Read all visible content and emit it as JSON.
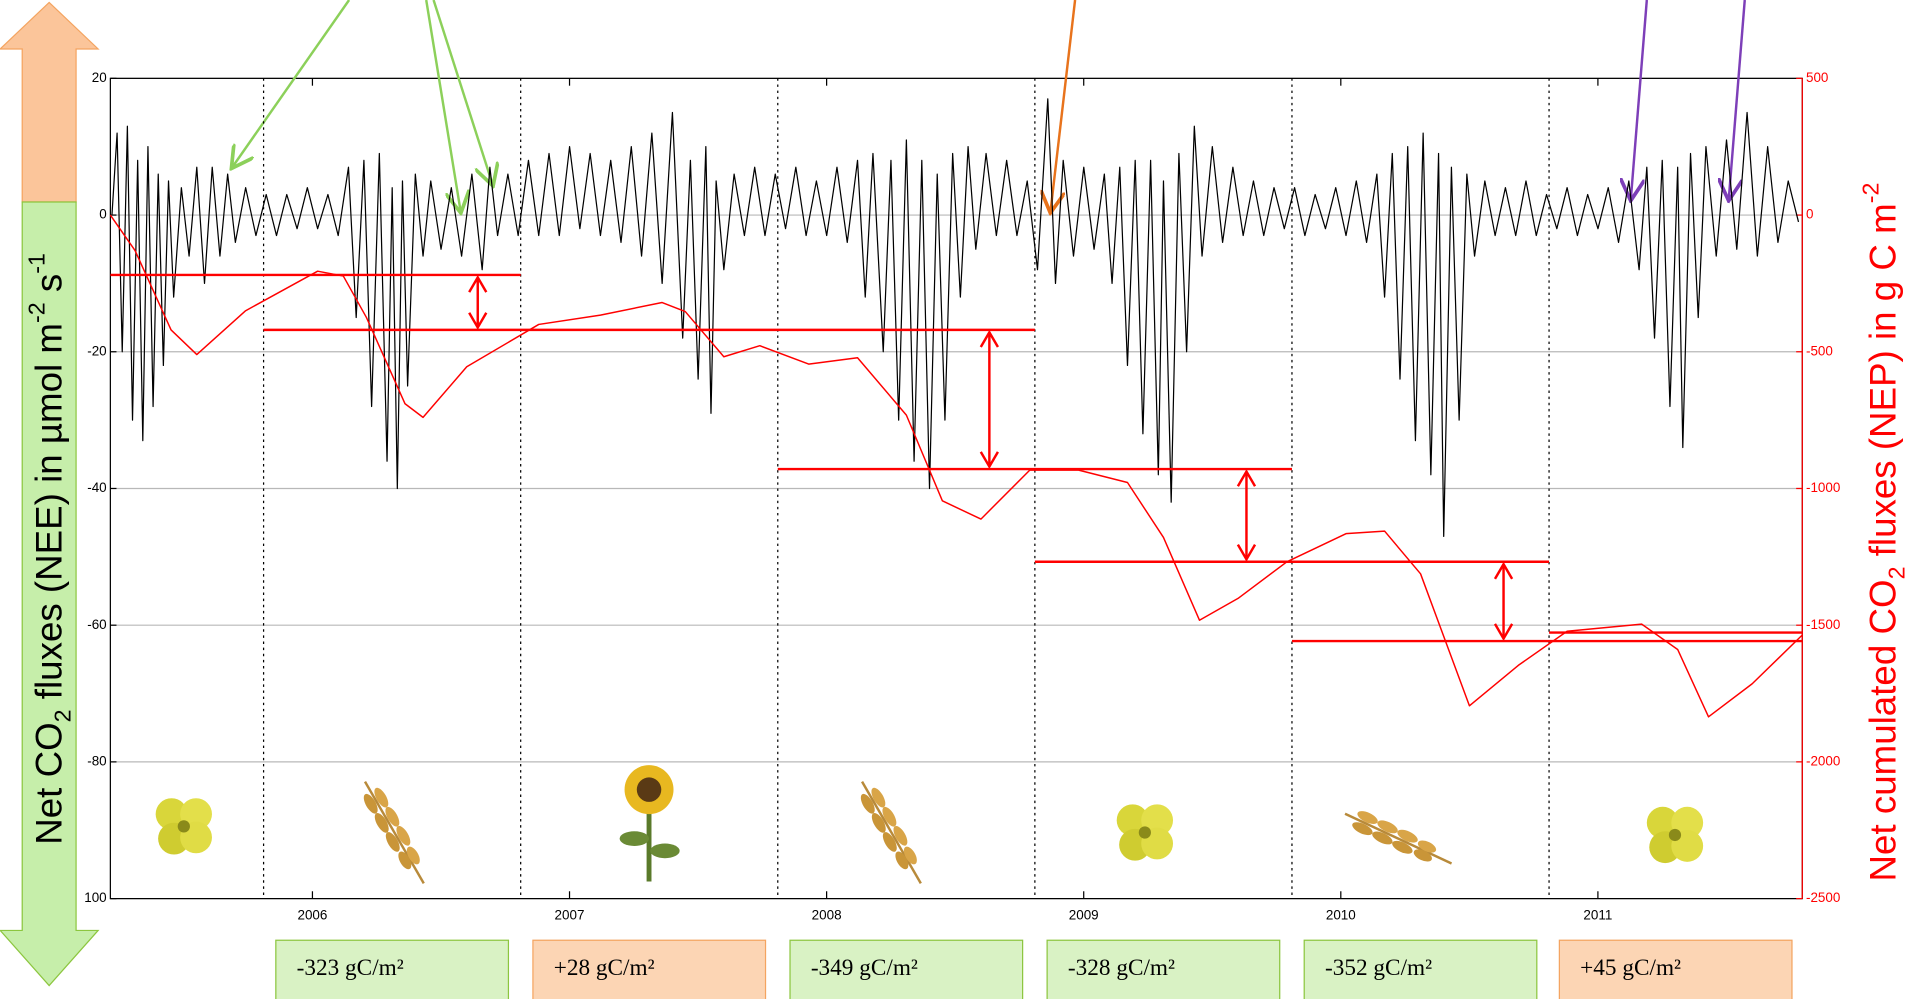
{
  "chart_data": {
    "type": "line",
    "ylabel": [
      "Net CO",
      "2",
      " fluxes (NEE) in µmol m",
      "-2",
      " s",
      "-1"
    ],
    "y2label": [
      "Net cumulated CO",
      "2",
      " fluxes (NEP) in g C m",
      "-2"
    ],
    "xlim": [
      2005.214,
      2011.795
    ],
    "xticks": [
      2006,
      2007,
      2008,
      2009,
      2010,
      2011
    ],
    "ylim": [
      -100,
      20
    ],
    "yticks": [
      20,
      0,
      -20,
      -40,
      -60,
      -80,
      {
        "value": -100,
        "label": "100"
      }
    ],
    "y2lim": [
      -2500,
      500
    ],
    "y2ticks": [
      500,
      0,
      -500,
      -1000,
      -1500,
      -2000,
      -2500
    ],
    "grid": true,
    "series": [
      {
        "color": "#000000",
        "x": [
          2005.22,
          2005.24,
          2005.26,
          2005.28,
          2005.3,
          2005.32,
          2005.34,
          2005.36,
          2005.38,
          2005.4,
          2005.42,
          2005.44,
          2005.46,
          2005.49,
          2005.52,
          2005.55,
          2005.58,
          2005.61,
          2005.64,
          2005.67,
          2005.7,
          2005.74,
          2005.78,
          2005.82,
          2005.86,
          2005.9,
          2005.94,
          2005.98,
          2006.02,
          2006.06,
          2006.1,
          2006.14,
          2006.17,
          2006.2,
          2006.23,
          2006.26,
          2006.29,
          2006.31,
          2006.33,
          2006.35,
          2006.37,
          2006.4,
          2006.43,
          2006.46,
          2006.5,
          2006.54,
          2006.58,
          2006.62,
          2006.66,
          2006.69,
          2006.72,
          2006.76,
          2006.8,
          2006.84,
          2006.88,
          2006.92,
          2006.96,
          2007.0,
          2007.04,
          2007.08,
          2007.12,
          2007.16,
          2007.2,
          2007.24,
          2007.28,
          2007.32,
          2007.36,
          2007.4,
          2007.44,
          2007.47,
          2007.5,
          2007.53,
          2007.55,
          2007.57,
          2007.6,
          2007.64,
          2007.68,
          2007.72,
          2007.76,
          2007.8,
          2007.84,
          2007.88,
          2007.92,
          2007.96,
          2008.0,
          2008.04,
          2008.08,
          2008.12,
          2008.15,
          2008.18,
          2008.22,
          2008.25,
          2008.28,
          2008.31,
          2008.34,
          2008.37,
          2008.4,
          2008.43,
          2008.46,
          2008.49,
          2008.52,
          2008.55,
          2008.58,
          2008.62,
          2008.66,
          2008.7,
          2008.74,
          2008.78,
          2008.82,
          2008.86,
          2008.89,
          2008.92,
          2008.96,
          2009.0,
          2009.04,
          2009.08,
          2009.11,
          2009.14,
          2009.17,
          2009.2,
          2009.23,
          2009.26,
          2009.29,
          2009.31,
          2009.34,
          2009.37,
          2009.4,
          2009.43,
          2009.46,
          2009.5,
          2009.54,
          2009.58,
          2009.62,
          2009.66,
          2009.7,
          2009.74,
          2009.78,
          2009.82,
          2009.86,
          2009.9,
          2009.94,
          2009.98,
          2010.02,
          2010.06,
          2010.1,
          2010.14,
          2010.17,
          2010.2,
          2010.23,
          2010.26,
          2010.29,
          2010.32,
          2010.35,
          2010.38,
          2010.4,
          2010.43,
          2010.46,
          2010.49,
          2010.52,
          2010.56,
          2010.6,
          2010.64,
          2010.68,
          2010.72,
          2010.76,
          2010.8,
          2010.84,
          2010.88,
          2010.92,
          2010.96,
          2011.0,
          2011.04,
          2011.08,
          2011.12,
          2011.16,
          2011.19,
          2011.22,
          2011.25,
          2011.28,
          2011.31,
          2011.33,
          2011.36,
          2011.39,
          2011.42,
          2011.46,
          2011.5,
          2011.54,
          2011.58,
          2011.62,
          2011.66,
          2011.7,
          2011.74,
          2011.78
        ],
        "values": [
          0,
          12,
          -20,
          13,
          -30,
          8,
          -33,
          10,
          -28,
          6,
          -22,
          5,
          -12,
          4,
          -6,
          7,
          -10,
          7,
          -6,
          6,
          -4,
          4,
          -3,
          3,
          -3,
          3,
          -2,
          4,
          -2,
          3,
          -3,
          7,
          -15,
          8,
          -28,
          9,
          -36,
          4,
          -40,
          5,
          -25,
          6,
          -6,
          5,
          -5,
          4,
          -6,
          6,
          -8,
          7,
          -3,
          6,
          -3,
          8,
          -3,
          9,
          -3,
          10,
          -2,
          9,
          -3,
          8,
          -4,
          10,
          -6,
          12,
          -10,
          15,
          -18,
          8,
          -24,
          10,
          -29,
          5,
          -8,
          6,
          -3,
          7,
          -3,
          6,
          -2,
          7,
          -3,
          5,
          -3,
          7,
          -4,
          8,
          -12,
          9,
          -20,
          8,
          -30,
          11,
          -36,
          8,
          -40,
          6,
          -30,
          9,
          -12,
          10,
          -5,
          9,
          -3,
          8,
          -3,
          5,
          -8,
          17,
          -10,
          8,
          -6,
          7,
          -5,
          6,
          -10,
          7,
          -22,
          8,
          -32,
          8,
          -38,
          5,
          -42,
          9,
          -20,
          13,
          -6,
          10,
          -4,
          7,
          -3,
          5,
          -3,
          4,
          -2,
          4,
          -3,
          3,
          -2,
          4,
          -3,
          5,
          -4,
          6,
          -12,
          9,
          -24,
          10,
          -33,
          12,
          -38,
          9,
          -47,
          7,
          -30,
          6,
          -6,
          5,
          -3,
          4,
          -3,
          5,
          -3,
          3,
          -2,
          4,
          -3,
          3,
          -2,
          4,
          -4,
          5,
          -8,
          7,
          -18,
          8,
          -28,
          7,
          -34,
          9,
          -15,
          10,
          -6,
          11,
          -5,
          15,
          -6,
          10,
          -4,
          5,
          -1
        ]
      },
      {
        "color": "#ff0000",
        "axis": "y2",
        "x": [
          2005.214,
          2005.31,
          2005.45,
          2005.55,
          2005.74,
          2006.02,
          2006.12,
          2006.21,
          2006.36,
          2006.43,
          2006.6,
          2006.88,
          2007.12,
          2007.36,
          2007.45,
          2007.6,
          2007.74,
          2007.93,
          2008.12,
          2008.31,
          2008.45,
          2008.6,
          2008.79,
          2008.98,
          2009.17,
          2009.31,
          2009.45,
          2009.6,
          2009.79,
          2010.02,
          2010.17,
          2010.31,
          2010.5,
          2010.69,
          2010.88,
          2011.17,
          2011.31,
          2011.43,
          2011.6,
          2011.795
        ],
        "values": [
          0,
          -130,
          -420,
          -510,
          -350,
          -205,
          -223,
          -375,
          -690,
          -740,
          -555,
          -400,
          -366,
          -320,
          -353,
          -518,
          -478,
          -545,
          -522,
          -732,
          -1045,
          -1112,
          -933,
          -933,
          -978,
          -1179,
          -1482,
          -1402,
          -1268,
          -1165,
          -1156,
          -1312,
          -1795,
          -1647,
          -1522,
          -1496,
          -1589,
          -1835,
          -1714,
          -1536
        ]
      }
    ],
    "season_lines": [
      2005.81,
      2006.81,
      2007.81,
      2008.81,
      2009.81,
      2010.81
    ],
    "reference_lines": [
      {
        "value": -219,
        "x": [
          2005.214,
          2006.81
        ]
      },
      {
        "value": -420,
        "x": [
          2005.81,
          2008.81
        ]
      },
      {
        "value": -929,
        "x": [
          2007.81,
          2009.81
        ]
      },
      {
        "value": -1268,
        "x": [
          2008.81,
          2010.81
        ]
      },
      {
        "value": -1558,
        "x": [
          2009.81,
          2011.795
        ]
      },
      {
        "value": -1527,
        "x": [
          2010.81,
          2011.795
        ]
      }
    ],
    "difference_arrows": [
      {
        "x": 2006.643,
        "from": -219,
        "to": -420
      },
      {
        "x": 2008.633,
        "from": -420,
        "to": -929
      },
      {
        "x": 2009.633,
        "from": -929,
        "to": -1268
      },
      {
        "x": 2010.633,
        "from": -1268,
        "to": -1558
      }
    ],
    "annotations": [
      {
        "text": "-323 gC/m²",
        "fill": "#d9f2c4",
        "stroke": "#8cc63f"
      },
      {
        "text": "+28 gC/m²",
        "fill": "#fcd5b4",
        "stroke": "#f4a460"
      },
      {
        "text": "-349 gC/m²",
        "fill": "#d9f2c4",
        "stroke": "#8cc63f"
      },
      {
        "text": "-328 gC/m²",
        "fill": "#d9f2c4",
        "stroke": "#8cc63f"
      },
      {
        "text": "-352 gC/m²",
        "fill": "#d9f2c4",
        "stroke": "#8cc63f"
      },
      {
        "text": "+45 gC/m²",
        "fill": "#fcd5b4",
        "stroke": "#f4a460"
      }
    ]
  }
}
